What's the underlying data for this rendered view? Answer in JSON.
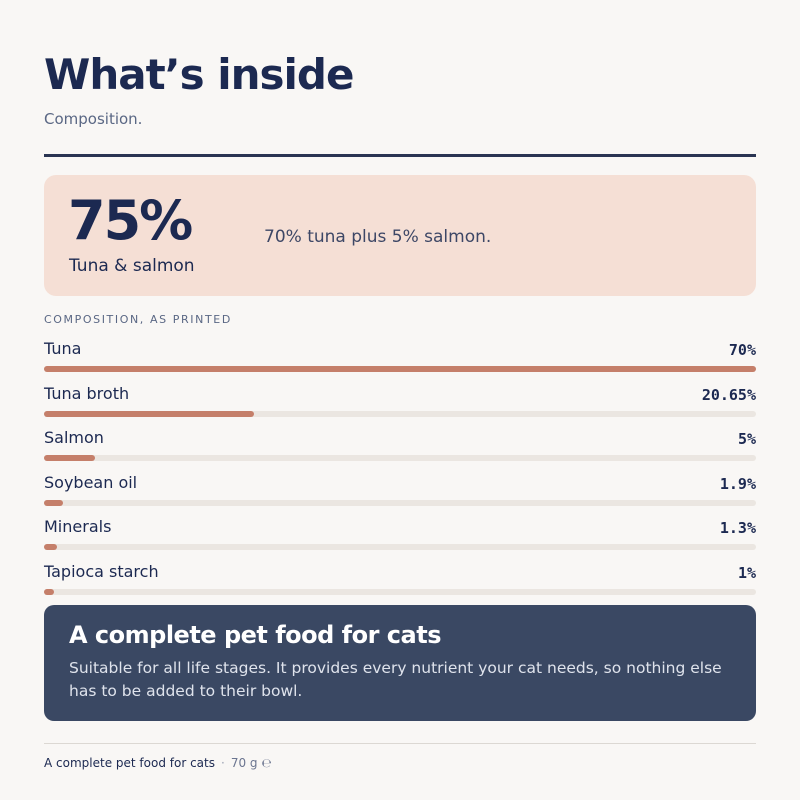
{
  "header": {
    "title": "What’s inside",
    "subtitle": "Composition."
  },
  "highlight": {
    "value": "75%",
    "label": "Tuna & salmon",
    "note": "70% tuna plus 5% salmon."
  },
  "composition": {
    "section_label": "COMPOSITION, AS PRINTED",
    "items": [
      {
        "name": "Tuna",
        "value_label": "70%",
        "percent": 70
      },
      {
        "name": "Tuna broth",
        "value_label": "20.65%",
        "percent": 20.65
      },
      {
        "name": "Salmon",
        "value_label": "5%",
        "percent": 5
      },
      {
        "name": "Soybean oil",
        "value_label": "1.9%",
        "percent": 1.9
      },
      {
        "name": "Minerals",
        "value_label": "1.3%",
        "percent": 1.3
      },
      {
        "name": "Tapioca starch",
        "value_label": "1%",
        "percent": 1
      }
    ],
    "bar_max_percent": 70
  },
  "info": {
    "title": "A complete pet food for cats",
    "body": "Suitable for all life stages. It provides every nutrient your cat needs, so nothing else has to be added to their bowl."
  },
  "footer": {
    "product": "A complete pet food for cats",
    "separator": "·",
    "weight": "70 g ℮"
  },
  "colors": {
    "accent": "#c57f6a",
    "highlight_bg": "#f5dfd5",
    "info_bg": "#3a4863",
    "text": "#1c2951"
  }
}
